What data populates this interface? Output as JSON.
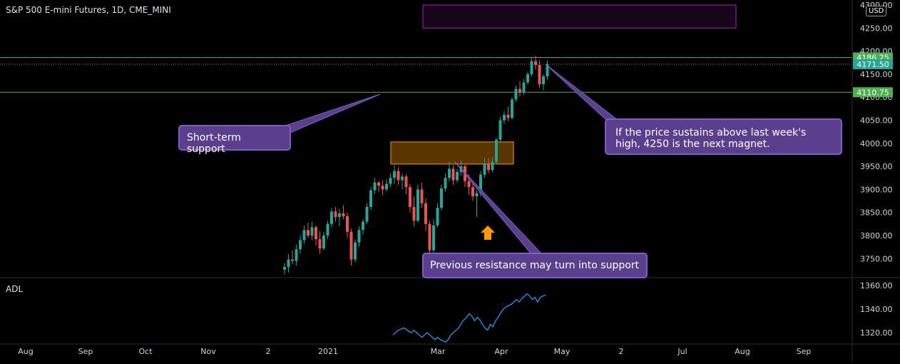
{
  "header": {
    "title": "S&P 500 E-mini Futures, 1D, CME_MINI",
    "currency": "USD",
    "indicator_label": "ADL"
  },
  "colors": {
    "background": "#000000",
    "up_candle": "#26a69a",
    "down_candle": "#ef5350",
    "level_line": "#4caf50",
    "adl_line": "#2196f3",
    "zone_fill": "#ff9800",
    "target_zone_border": "#9c27b0",
    "callout_fill": "#5b3f8f",
    "arrow": "#ff9800"
  },
  "annotations": {
    "short_term_support": "Short-term support",
    "previous_resistance": "Previous resistance may turn into support",
    "price_sustains": "If the price sustains above last week's high, 4250 is the next magnet."
  },
  "chart_data": [
    {
      "type": "candlestick",
      "title": "S&P 500 E-mini Futures, 1D, CME_MINI",
      "y_tick_labels": [
        "4300.00",
        "4250.00",
        "4200.00",
        "4150.00",
        "4100.00",
        "4050.00",
        "4000.00",
        "3950.00",
        "3900.00",
        "3850.00",
        "3800.00",
        "3750.00"
      ],
      "x_tick_labels": [
        "Aug",
        "Sep",
        "Oct",
        "Nov",
        "2",
        "2021",
        "Mar",
        "Apr",
        "May",
        "2",
        "Jul",
        "Aug",
        "Sep"
      ],
      "ylim": [
        3730,
        4305
      ],
      "price_labels": [
        {
          "text": "4186.25",
          "value": 4186.25,
          "style": "level"
        },
        {
          "text": "4171.50",
          "value": 4171.5,
          "style": "last"
        },
        {
          "text": "4110.75",
          "value": 4110.75,
          "style": "level"
        }
      ],
      "horizontal_levels": [
        4186.25,
        4110.75
      ],
      "current_price": 4171.5,
      "resistance_zone": {
        "from": 3955,
        "to": 4003
      },
      "target_zone": {
        "from": 4250,
        "to": 4300
      },
      "candles": [
        {
          "o": 3726,
          "h": 3740,
          "l": 3715,
          "c": 3732
        },
        {
          "o": 3732,
          "h": 3760,
          "l": 3720,
          "c": 3748
        },
        {
          "o": 3748,
          "h": 3768,
          "l": 3738,
          "c": 3745
        },
        {
          "o": 3745,
          "h": 3780,
          "l": 3735,
          "c": 3770
        },
        {
          "o": 3770,
          "h": 3800,
          "l": 3760,
          "c": 3790
        },
        {
          "o": 3790,
          "h": 3822,
          "l": 3782,
          "c": 3812
        },
        {
          "o": 3812,
          "h": 3828,
          "l": 3795,
          "c": 3800
        },
        {
          "o": 3800,
          "h": 3830,
          "l": 3790,
          "c": 3818
        },
        {
          "o": 3818,
          "h": 3822,
          "l": 3778,
          "c": 3792
        },
        {
          "o": 3792,
          "h": 3810,
          "l": 3760,
          "c": 3772
        },
        {
          "o": 3772,
          "h": 3808,
          "l": 3768,
          "c": 3800
        },
        {
          "o": 3800,
          "h": 3832,
          "l": 3792,
          "c": 3825
        },
        {
          "o": 3825,
          "h": 3860,
          "l": 3818,
          "c": 3852
        },
        {
          "o": 3852,
          "h": 3862,
          "l": 3830,
          "c": 3840
        },
        {
          "o": 3840,
          "h": 3858,
          "l": 3820,
          "c": 3848
        },
        {
          "o": 3848,
          "h": 3866,
          "l": 3835,
          "c": 3842
        },
        {
          "o": 3842,
          "h": 3850,
          "l": 3795,
          "c": 3808
        },
        {
          "o": 3808,
          "h": 3815,
          "l": 3735,
          "c": 3748
        },
        {
          "o": 3748,
          "h": 3792,
          "l": 3742,
          "c": 3785
        },
        {
          "o": 3785,
          "h": 3820,
          "l": 3775,
          "c": 3812
        },
        {
          "o": 3812,
          "h": 3835,
          "l": 3802,
          "c": 3830
        },
        {
          "o": 3830,
          "h": 3870,
          "l": 3825,
          "c": 3862
        },
        {
          "o": 3862,
          "h": 3905,
          "l": 3855,
          "c": 3898
        },
        {
          "o": 3898,
          "h": 3925,
          "l": 3890,
          "c": 3915
        },
        {
          "o": 3915,
          "h": 3918,
          "l": 3895,
          "c": 3908
        },
        {
          "o": 3908,
          "h": 3920,
          "l": 3888,
          "c": 3900
        },
        {
          "o": 3900,
          "h": 3922,
          "l": 3895,
          "c": 3912
        },
        {
          "o": 3912,
          "h": 3935,
          "l": 3905,
          "c": 3925
        },
        {
          "o": 3925,
          "h": 3953,
          "l": 3912,
          "c": 3940
        },
        {
          "o": 3940,
          "h": 3948,
          "l": 3910,
          "c": 3920
        },
        {
          "o": 3920,
          "h": 3935,
          "l": 3900,
          "c": 3928
        },
        {
          "o": 3928,
          "h": 3932,
          "l": 3890,
          "c": 3905
        },
        {
          "o": 3905,
          "h": 3912,
          "l": 3850,
          "c": 3862
        },
        {
          "o": 3862,
          "h": 3885,
          "l": 3820,
          "c": 3832
        },
        {
          "o": 3832,
          "h": 3910,
          "l": 3828,
          "c": 3900
        },
        {
          "o": 3900,
          "h": 3915,
          "l": 3860,
          "c": 3870
        },
        {
          "o": 3870,
          "h": 3880,
          "l": 3810,
          "c": 3825
        },
        {
          "o": 3825,
          "h": 3832,
          "l": 3745,
          "c": 3768
        },
        {
          "o": 3768,
          "h": 3835,
          "l": 3760,
          "c": 3822
        },
        {
          "o": 3822,
          "h": 3870,
          "l": 3818,
          "c": 3860
        },
        {
          "o": 3860,
          "h": 3910,
          "l": 3855,
          "c": 3902
        },
        {
          "o": 3902,
          "h": 3935,
          "l": 3895,
          "c": 3925
        },
        {
          "o": 3925,
          "h": 3960,
          "l": 3918,
          "c": 3945
        },
        {
          "o": 3945,
          "h": 3952,
          "l": 3910,
          "c": 3920
        },
        {
          "o": 3920,
          "h": 3945,
          "l": 3915,
          "c": 3938
        },
        {
          "o": 3938,
          "h": 3962,
          "l": 3930,
          "c": 3950
        },
        {
          "o": 3950,
          "h": 3955,
          "l": 3905,
          "c": 3918
        },
        {
          "o": 3918,
          "h": 3932,
          "l": 3888,
          "c": 3905
        },
        {
          "o": 3905,
          "h": 3918,
          "l": 3875,
          "c": 3885
        },
        {
          "o": 3885,
          "h": 3898,
          "l": 3840,
          "c": 3892
        },
        {
          "o": 3892,
          "h": 3940,
          "l": 3885,
          "c": 3932
        },
        {
          "o": 3932,
          "h": 3968,
          "l": 3925,
          "c": 3955
        },
        {
          "o": 3955,
          "h": 3968,
          "l": 3935,
          "c": 3942
        },
        {
          "o": 3942,
          "h": 3970,
          "l": 3938,
          "c": 3960
        },
        {
          "o": 3960,
          "h": 4012,
          "l": 3955,
          "c": 4008
        },
        {
          "o": 4008,
          "h": 4058,
          "l": 4003,
          "c": 4050
        },
        {
          "o": 4050,
          "h": 4070,
          "l": 4042,
          "c": 4062
        },
        {
          "o": 4062,
          "h": 4080,
          "l": 4048,
          "c": 4055
        },
        {
          "o": 4055,
          "h": 4100,
          "l": 4052,
          "c": 4095
        },
        {
          "o": 4095,
          "h": 4125,
          "l": 4090,
          "c": 4118
        },
        {
          "o": 4118,
          "h": 4135,
          "l": 4102,
          "c": 4110
        },
        {
          "o": 4110,
          "h": 4140,
          "l": 4105,
          "c": 4132
        },
        {
          "o": 4132,
          "h": 4155,
          "l": 4128,
          "c": 4150
        },
        {
          "o": 4150,
          "h": 4185,
          "l": 4145,
          "c": 4178
        },
        {
          "o": 4178,
          "h": 4190,
          "l": 4160,
          "c": 4170
        },
        {
          "o": 4170,
          "h": 4180,
          "l": 4120,
          "c": 4128
        },
        {
          "o": 4128,
          "h": 4150,
          "l": 4115,
          "c": 4145
        },
        {
          "o": 4145,
          "h": 4180,
          "l": 4138,
          "c": 4172
        }
      ]
    },
    {
      "type": "line",
      "title": "ADL",
      "y_tick_labels": [
        "1360.00",
        "1340.00",
        "1320.00"
      ],
      "ylim": [
        1309,
        1362
      ],
      "series": [
        {
          "values": [
            1318,
            1320,
            1322,
            1323,
            1324,
            1323,
            1321,
            1320,
            1322,
            1320,
            1318,
            1316,
            1318,
            1320,
            1318,
            1316,
            1314,
            1316,
            1314,
            1313,
            1312,
            1314,
            1318,
            1320,
            1322,
            1324,
            1328,
            1331,
            1333,
            1336,
            1334,
            1330,
            1333,
            1331,
            1327,
            1324,
            1322,
            1327,
            1325,
            1330,
            1333,
            1337,
            1340,
            1342,
            1343,
            1344,
            1346,
            1348,
            1346,
            1349,
            1351,
            1353,
            1351,
            1348,
            1350,
            1346,
            1350,
            1351,
            1352
          ]
        }
      ]
    }
  ]
}
